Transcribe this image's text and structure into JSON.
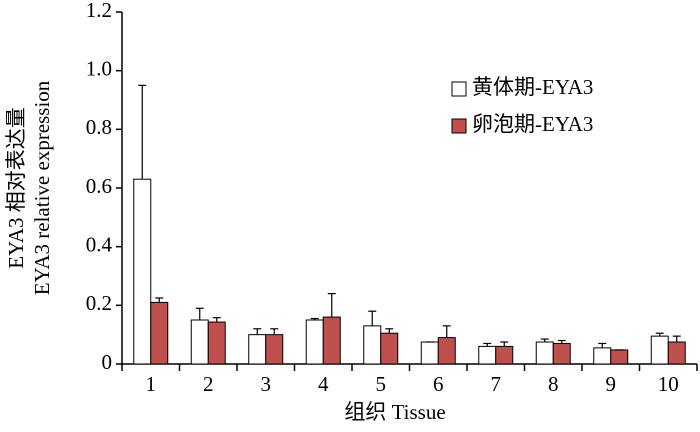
{
  "chart_data": {
    "type": "bar",
    "y_label": [
      "EYA3 相对表达量",
      "EYA3 relative expression"
    ],
    "x_label": "组织 Tissue",
    "categories": [
      "1",
      "2",
      "3",
      "4",
      "5",
      "6",
      "7",
      "8",
      "9",
      "10"
    ],
    "series": [
      {
        "name": "黄体期-EYA3",
        "color": "#ffffff",
        "values": [
          0.63,
          0.15,
          0.1,
          0.15,
          0.13,
          0.075,
          0.06,
          0.075,
          0.055,
          0.095
        ],
        "errors": [
          0.32,
          0.04,
          0.02,
          0.005,
          0.05,
          0,
          0.01,
          0.01,
          0.015,
          0.01
        ]
      },
      {
        "name": "卵泡期-EYA3",
        "color": "#c0504d",
        "values": [
          0.21,
          0.143,
          0.1,
          0.16,
          0.105,
          0.09,
          0.06,
          0.07,
          0.048,
          0.075
        ],
        "errors": [
          0.015,
          0.015,
          0.02,
          0.08,
          0.015,
          0.04,
          0.015,
          0.01,
          0,
          0.02
        ]
      }
    ],
    "ylim": [
      0,
      1.2
    ],
    "yticks": [
      0,
      0.2,
      0.4,
      0.6,
      0.8,
      {
        "value": 1,
        "label": "1.0"
      },
      1.2
    ],
    "legend": "upper right"
  }
}
